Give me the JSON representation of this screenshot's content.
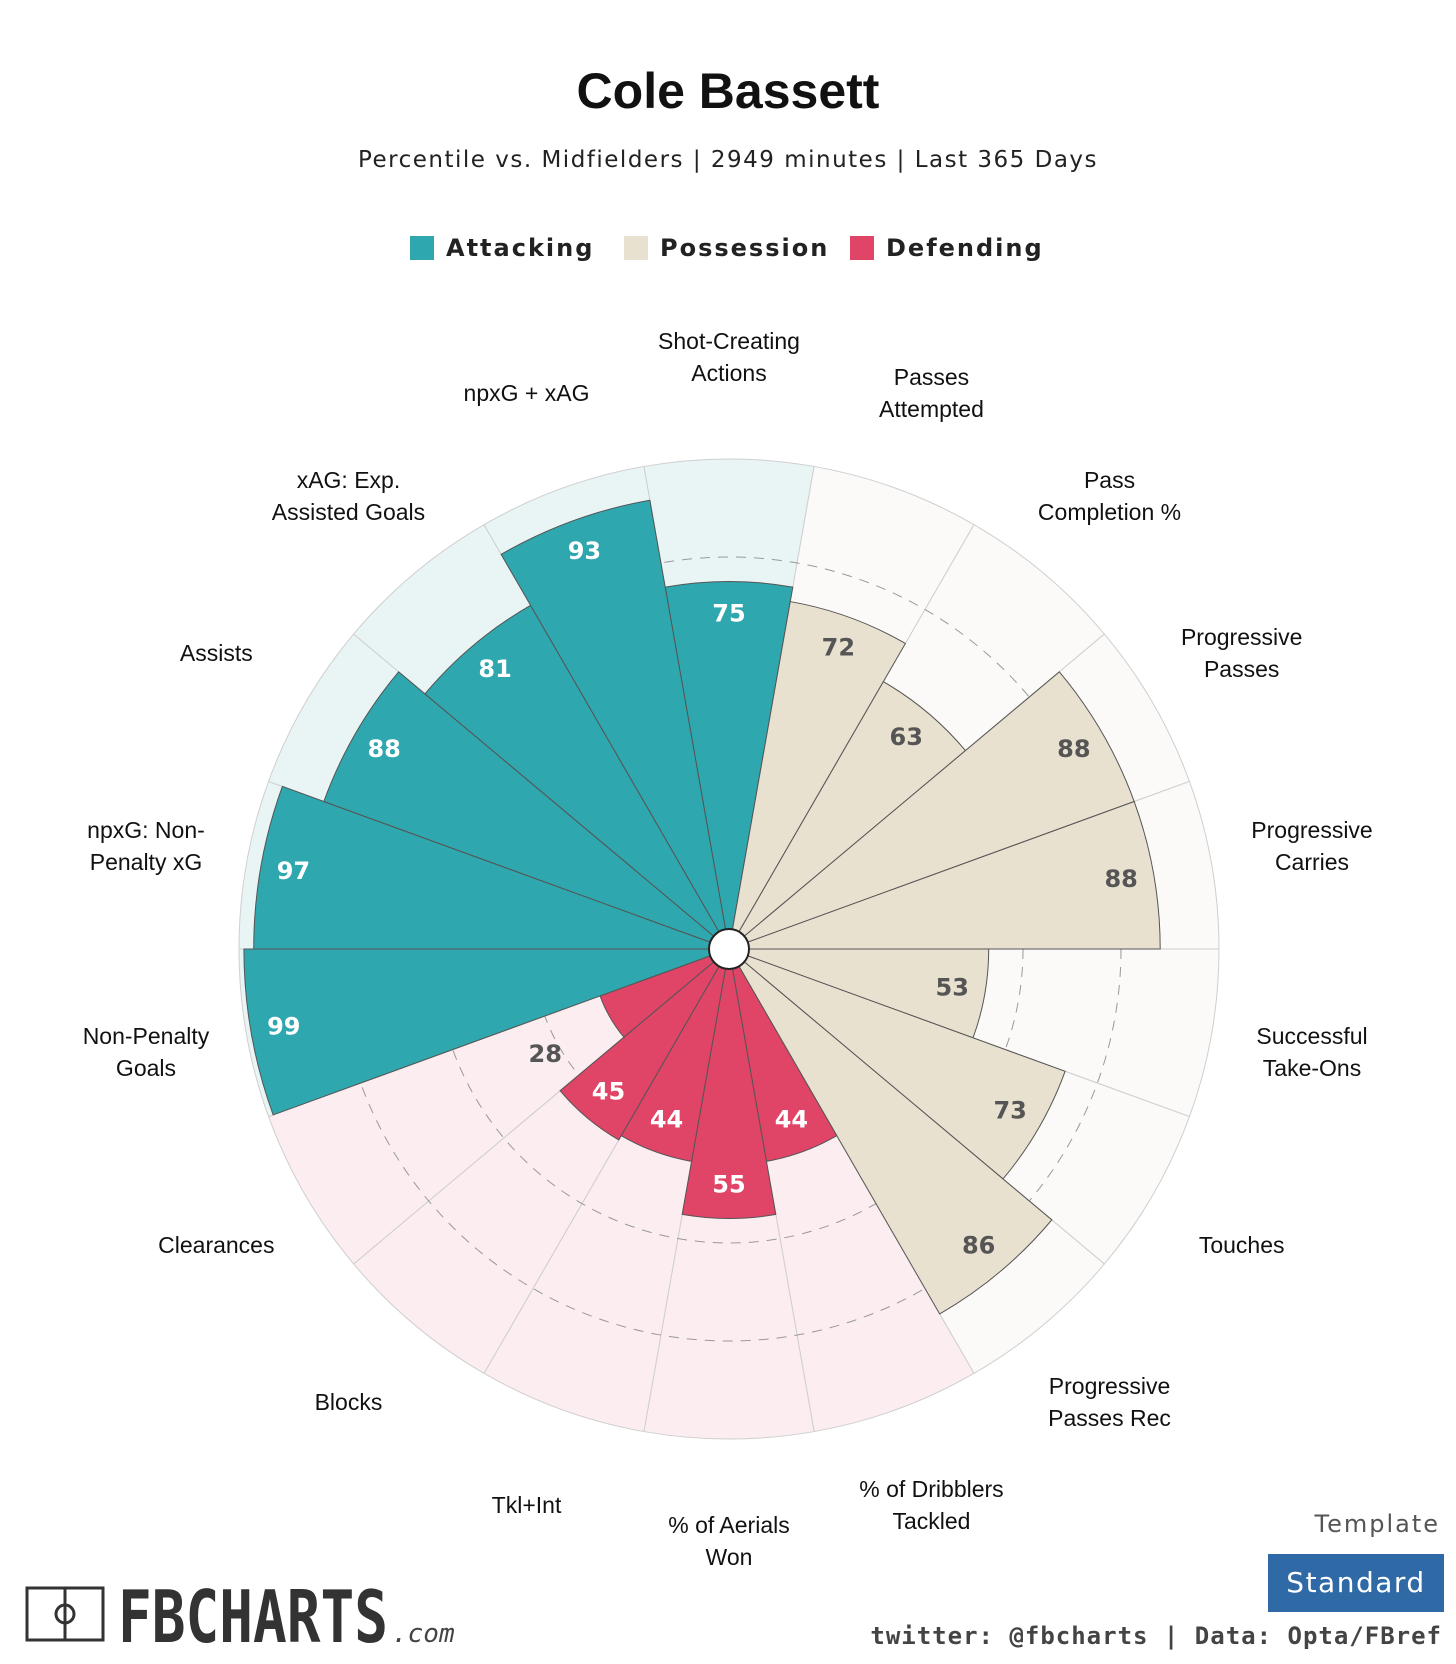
{
  "chart_data": {
    "type": "polar_bar",
    "title": "Cole Bassett",
    "subtitle": "Percentile vs. Midfielders | 2949 minutes | Last 365 Days",
    "legend": [
      {
        "name": "Attacking",
        "color": "#2fa7ae",
        "background": "#e9f5f5"
      },
      {
        "name": "Possession",
        "color": "#e8e1d0",
        "background": "#fbfaf8"
      },
      {
        "name": "Defending",
        "color": "#e04466",
        "background": "#fbedf0"
      }
    ],
    "categories": [
      "Shot-Creating\nActions",
      "Passes\nAttempted",
      "Pass\nCompletion %",
      "Progressive\nPasses",
      "Progressive\nCarries",
      "Successful\nTake-Ons",
      "Touches",
      "Progressive\nPasses Rec",
      "% of Dribblers\nTackled",
      "% of Aerials\nWon",
      "Tkl+Int",
      "Blocks",
      "Clearances",
      "Non-Penalty\nGoals",
      "npxG: Non-\nPenalty xG",
      "Assists",
      "xAG: Exp.\nAssisted Goals",
      "npxG + xAG"
    ],
    "groups": [
      "Attacking",
      "Possession",
      "Possession",
      "Possession",
      "Possession",
      "Possession",
      "Possession",
      "Possession",
      "Defending",
      "Defending",
      "Defending",
      "Defending",
      "Defending",
      "Attacking",
      "Attacking",
      "Attacking",
      "Attacking",
      "Attacking"
    ],
    "values": [
      75,
      72,
      63,
      88,
      88,
      53,
      73,
      86,
      44,
      55,
      44,
      45,
      28,
      99,
      97,
      88,
      81,
      93
    ],
    "ylim": [
      0,
      100
    ],
    "yticks": [
      20,
      40,
      60,
      80
    ],
    "template_label": "Template",
    "template": "Standard",
    "logo": "FBCHARTS",
    "logo_suffix": ".com",
    "credit": "twitter: @fbcharts | Data: Opta/FBref"
  }
}
